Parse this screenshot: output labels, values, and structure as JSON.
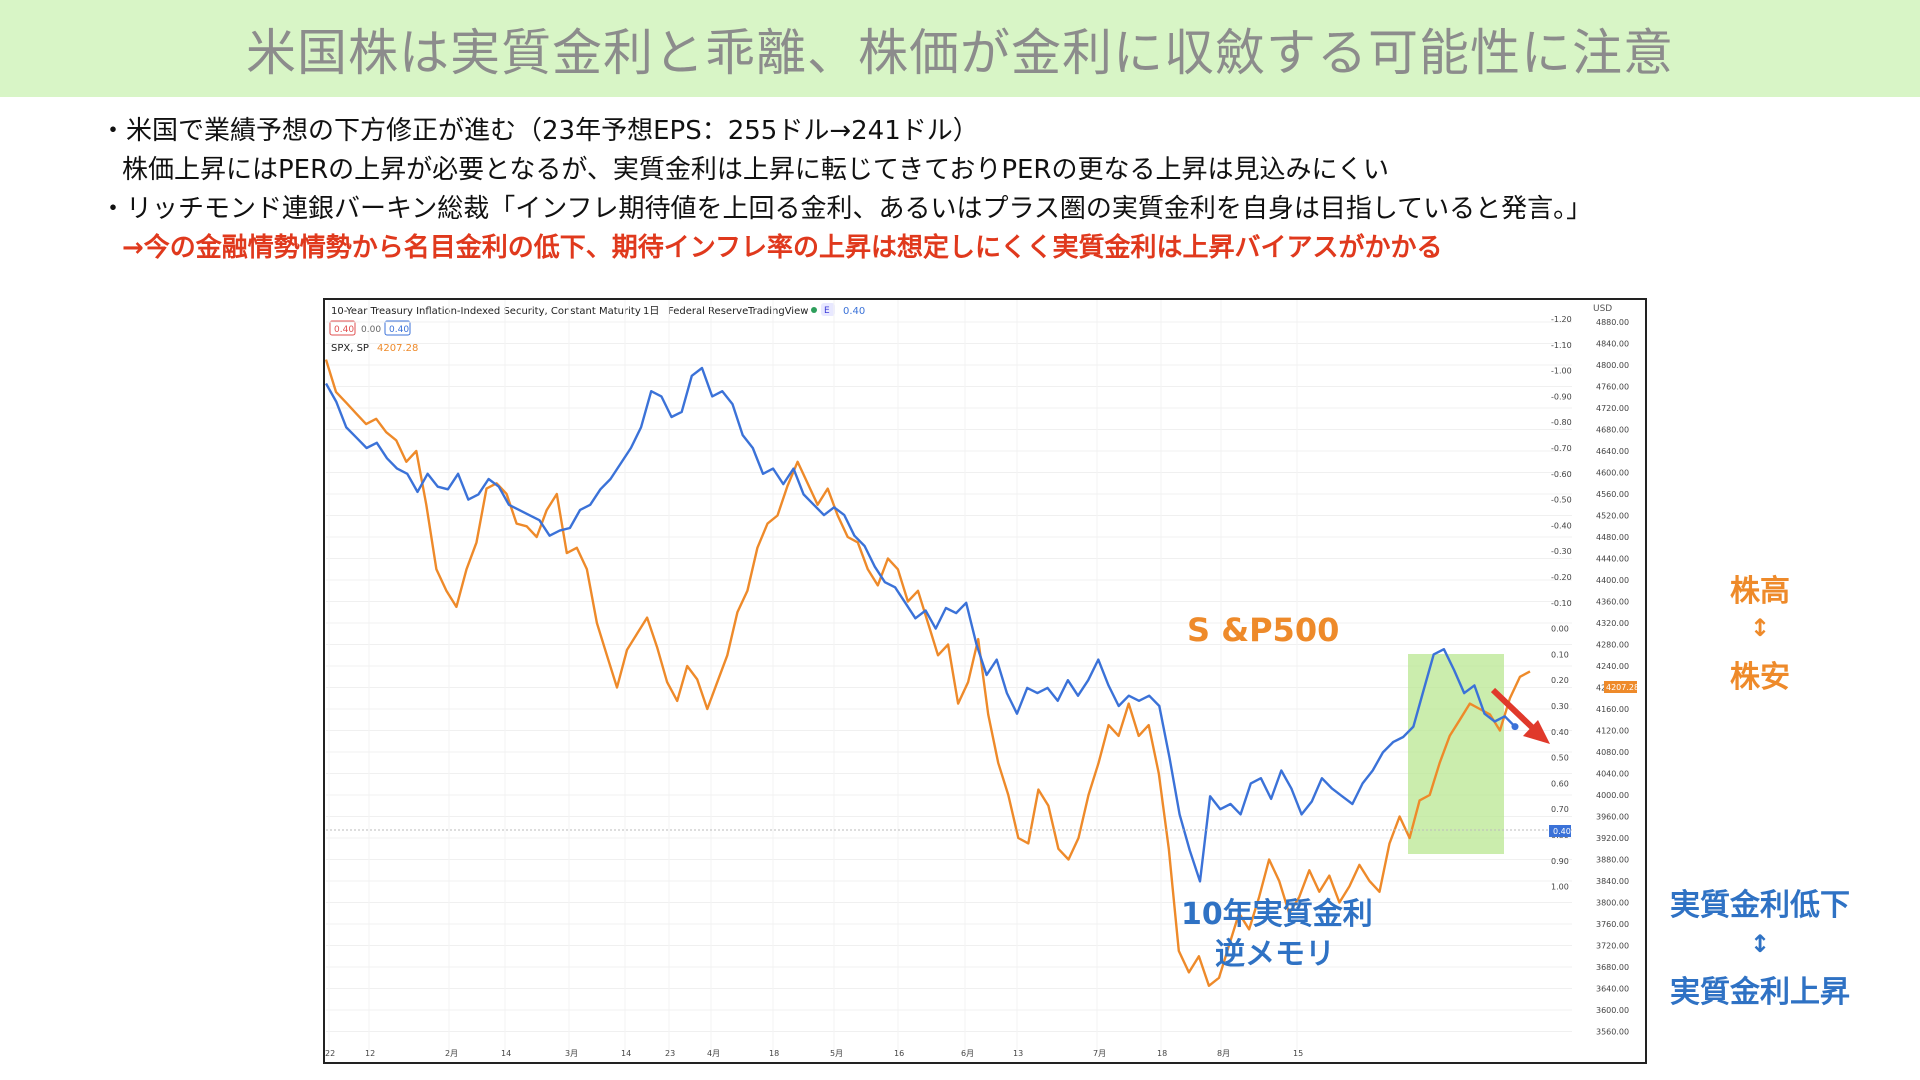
{
  "title": "米国株は実質金利と乖離、株価が金利に収斂する可能性に注意",
  "bullets": [
    "・米国で業績予想の下方修正が進む（23年予想EPS：255ドル→241ドル）",
    "株価上昇にはPERの上昇が必要となるが、実質金利は上昇に転じてきておりPERの更なる上昇は見込みにくい",
    "・リッチモンド連銀バーキン総裁「インフレ期待値を上回る金利、あるいはプラス圏の実質金利を自身は目指していると発言。」",
    "→今の金融情勢情勢から名目金利の低下、期待インフレ率の上昇は想定しにくく実質金利は上昇バイアスがかかる"
  ],
  "chart_header": {
    "series1_title": "10-Year Treasury Inflation-Indexed Security, Constant Maturity",
    "interval": "1日",
    "source": "Federal Reserve",
    "platform": "TradingView",
    "badge_e": "E",
    "series1_value": "0.40",
    "ohlc": [
      "0.40",
      "0.00",
      "0.40"
    ],
    "series2_title": "SPX, SP",
    "series2_value": "4207.28",
    "currency": "USD"
  },
  "annotations": {
    "sp500": "S &P500",
    "real_rate_line1": "10年実質金利",
    "real_rate_line2": "逆メモリ"
  },
  "side_labels": {
    "stock_high": "株高",
    "stock_low": "株安",
    "rate_down": "実質金利低下",
    "rate_up": "実質金利上昇",
    "arrow": "↕"
  },
  "colors": {
    "spx": "#ee8a2a",
    "real_rate": "#3b72d8",
    "highlight": "#b5e58a",
    "arrow": "#e0392b"
  },
  "chart_data": {
    "type": "line",
    "x_ticks": [
      "22",
      "12",
      "2月",
      "14",
      "3月",
      "14",
      "23",
      "4月",
      "18",
      "5月",
      "16",
      "6月",
      "13",
      "7月",
      "18",
      "8月",
      "15"
    ],
    "y_left": {
      "label": "USD",
      "ticks": [
        "4880.00",
        "4840.00",
        "4800.00",
        "4760.00",
        "4720.00",
        "4680.00",
        "4640.00",
        "4600.00",
        "4560.00",
        "4520.00",
        "4480.00",
        "4440.00",
        "4400.00",
        "4360.00",
        "4320.00",
        "4280.00",
        "4240.00",
        "4200.00",
        "4160.00",
        "4120.00",
        "4080.00",
        "4040.00",
        "4000.00",
        "3960.00",
        "3920.00",
        "3880.00",
        "3840.00",
        "3800.00",
        "3760.00",
        "3720.00",
        "3680.00",
        "3640.00",
        "3600.00",
        "3560.00"
      ]
    },
    "y_right": {
      "inverted": true,
      "ticks": [
        "-1.20",
        "-1.10",
        "-1.00",
        "-0.90",
        "-0.80",
        "-0.70",
        "-0.60",
        "-0.50",
        "-0.40",
        "-0.30",
        "-0.20",
        "-0.10",
        "0.00",
        "0.10",
        "0.20",
        "0.30",
        "0.40",
        "0.50",
        "0.60",
        "0.70",
        "0.80",
        "0.90",
        "1.00"
      ]
    },
    "current": {
      "spx": "4207.28",
      "real_rate": "0.40"
    },
    "series": [
      {
        "name": "SPX, SP",
        "values": [
          4810,
          4750,
          4730,
          4710,
          4690,
          4700,
          4675,
          4660,
          4620,
          4640,
          4540,
          4420,
          4380,
          4350,
          4420,
          4470,
          4570,
          4580,
          4560,
          4505,
          4500,
          4480,
          4530,
          4560,
          4450,
          4460,
          4420,
          4320,
          4260,
          4200,
          4270,
          4300,
          4330,
          4275,
          4210,
          4175,
          4240,
          4215,
          4160,
          4210,
          4260,
          4340,
          4380,
          4460,
          4505,
          4520,
          4575,
          4620,
          4580,
          4540,
          4570,
          4520,
          4480,
          4470,
          4420,
          4390,
          4440,
          4420,
          4360,
          4380,
          4320,
          4260,
          4280,
          4170,
          4210,
          4290,
          4150,
          4060,
          4000,
          3920,
          3910,
          4010,
          3980,
          3900,
          3880,
          3920,
          4000,
          4060,
          4130,
          4110,
          4170,
          4110,
          4130,
          4040,
          3900,
          3710,
          3670,
          3700,
          3645,
          3660,
          3720,
          3780,
          3750,
          3810,
          3880,
          3840,
          3780,
          3810,
          3860,
          3820,
          3850,
          3800,
          3830,
          3870,
          3840,
          3820,
          3910,
          3960,
          3920,
          3990,
          4000,
          4060,
          4110,
          4140,
          4170,
          4160,
          4150,
          4120,
          4180,
          4220,
          4230
        ],
        "color": "#ee8a2a"
      },
      {
        "name": "",
        "values": [
          -0.95,
          -0.88,
          -0.78,
          -0.74,
          -0.7,
          -0.72,
          -0.66,
          -0.62,
          -0.6,
          -0.53,
          -0.6,
          -0.55,
          -0.54,
          -0.6,
          -0.5,
          -0.52,
          -0.58,
          -0.55,
          -0.48,
          -0.46,
          -0.44,
          -0.42,
          -0.36,
          -0.38,
          -0.39,
          -0.46,
          -0.48,
          -0.54,
          -0.58,
          -0.64,
          -0.7,
          -0.78,
          -0.92,
          -0.9,
          -0.82,
          -0.84,
          -0.98,
          -1.01,
          -0.9,
          -0.92,
          -0.87,
          -0.75,
          -0.7,
          -0.6,
          -0.62,
          -0.56,
          -0.62,
          -0.52,
          -0.48,
          -0.44,
          -0.47,
          -0.44,
          -0.36,
          -0.32,
          -0.24,
          -0.18,
          -0.16,
          -0.1,
          -0.04,
          -0.07,
          0.0,
          -0.08,
          -0.06,
          -0.1,
          0.06,
          0.18,
          0.12,
          0.25,
          0.33,
          0.23,
          0.25,
          0.23,
          0.28,
          0.2,
          0.26,
          0.2,
          0.12,
          0.22,
          0.3,
          0.26,
          0.28,
          0.26,
          0.3,
          0.5,
          0.72,
          0.86,
          0.98,
          0.65,
          0.7,
          0.68,
          0.72,
          0.6,
          0.58,
          0.66,
          0.55,
          0.62,
          0.72,
          0.67,
          0.58,
          0.62,
          0.65,
          0.68,
          0.6,
          0.55,
          0.48,
          0.44,
          0.42,
          0.38,
          0.24,
          0.1,
          0.08,
          0.16,
          0.25,
          0.22,
          0.33,
          0.36,
          0.34,
          0.38
        ],
        "color": "#3b72d8"
      }
    ]
  }
}
